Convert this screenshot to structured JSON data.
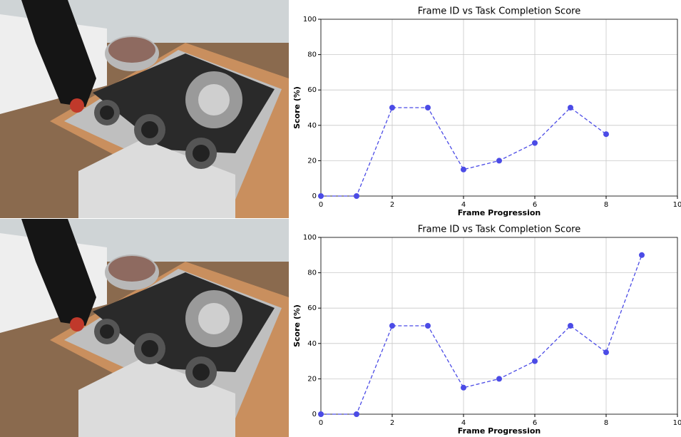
{
  "chart_data": [
    {
      "type": "line",
      "title": "Frame ID vs Task Completion Score",
      "x_label": "Frame Progression",
      "y_label": "Score (%)",
      "x": [
        0,
        1,
        2,
        3,
        4,
        5,
        6,
        7,
        8
      ],
      "values": [
        0,
        0,
        50,
        50,
        15,
        20,
        30,
        50,
        35
      ],
      "color": "#4b4be6",
      "line_style": "dashed",
      "markers": true,
      "xlim": [
        0,
        10
      ],
      "ylim": [
        0,
        100
      ],
      "xticks": [
        0,
        2,
        4,
        6,
        8,
        10
      ],
      "yticks": [
        0,
        20,
        40,
        60,
        80,
        100
      ],
      "grid": true
    },
    {
      "type": "line",
      "title": "Frame ID vs Task Completion Score",
      "x_label": "Frame Progression",
      "y_label": "Score (%)",
      "x": [
        0,
        1,
        2,
        3,
        4,
        5,
        6,
        7,
        8,
        9
      ],
      "values": [
        0,
        0,
        50,
        50,
        15,
        20,
        30,
        50,
        35,
        90
      ],
      "color": "#4b4be6",
      "line_style": "dashed",
      "markers": true,
      "xlim": [
        0,
        10
      ],
      "ylim": [
        0,
        100
      ],
      "xticks": [
        0,
        2,
        4,
        6,
        8,
        10
      ],
      "yticks": [
        0,
        20,
        40,
        60,
        80,
        100
      ],
      "grid": true
    }
  ]
}
